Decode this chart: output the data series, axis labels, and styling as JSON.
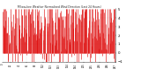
{
  "title": "Milwaukee Weather Normalized Wind Direction (Last 24 Hours)",
  "bg_color": "#ffffff",
  "plot_bg_color": "#ffffff",
  "line_color": "#dd0000",
  "grid_color": "#bbbbbb",
  "n_points": 288,
  "y_min": -1,
  "y_max": 5,
  "seed": 42
}
